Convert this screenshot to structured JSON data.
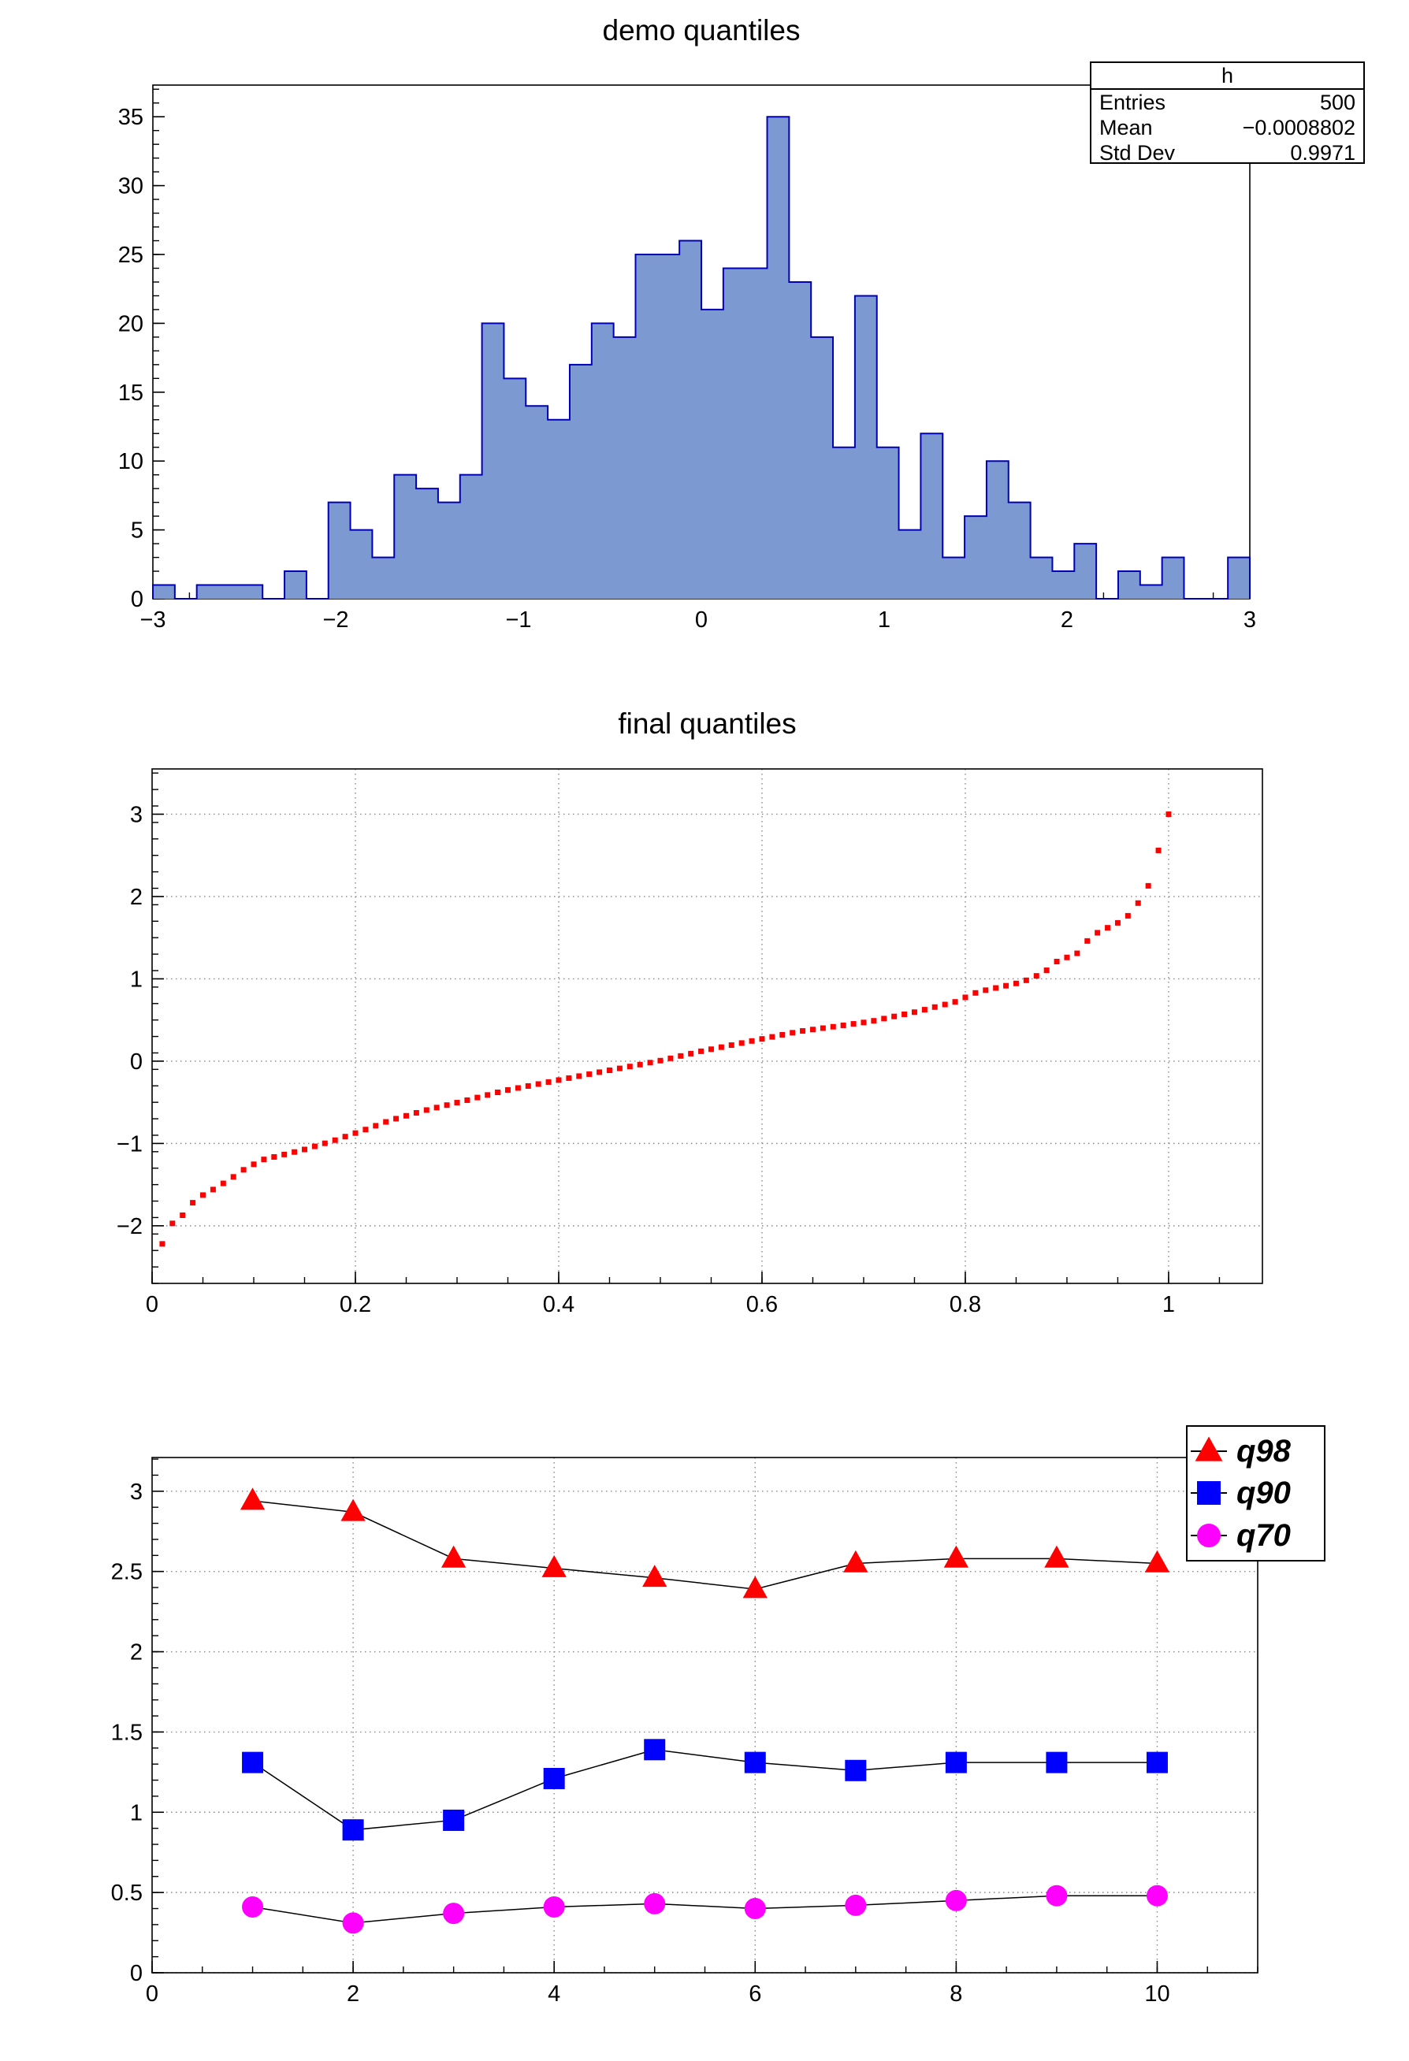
{
  "canvas": {
    "background": "#ffffff"
  },
  "colors": {
    "hist_fill": "#7d99d1",
    "hist_line": "#0000b4",
    "scatter_marker": "#ff0000",
    "q98": "#ff0000",
    "q90": "#0000ff",
    "q70": "#ff00ff",
    "grid": "#888888",
    "axis": "#000000"
  },
  "chart_data": [
    {
      "type": "bar",
      "title": "demo quantiles",
      "xlabel": "",
      "ylabel": "",
      "xlim": [
        -3,
        3
      ],
      "ylim": [
        0,
        37.3
      ],
      "grid": false,
      "bin_start": -3,
      "bin_width": 0.12,
      "bins": 50,
      "values": [
        1,
        0,
        1,
        1,
        1,
        0,
        2,
        0,
        7,
        5,
        3,
        9,
        8,
        7,
        9,
        20,
        16,
        14,
        13,
        17,
        20,
        19,
        25,
        25,
        26,
        21,
        24,
        24,
        35,
        23,
        19,
        11,
        22,
        11,
        5,
        12,
        3,
        6,
        10,
        7,
        3,
        2,
        4,
        0,
        2,
        1,
        3,
        0,
        0,
        3
      ],
      "xtick_values": [
        -3,
        -2,
        -1,
        0,
        1,
        2,
        3
      ],
      "xtick_labels": [
        "−3",
        "−2",
        "−1",
        "0",
        "1",
        "2",
        "3"
      ],
      "ytick_values": [
        0,
        5,
        10,
        15,
        20,
        25,
        30,
        35
      ],
      "ytick_labels": [
        "0",
        "5",
        "10",
        "15",
        "20",
        "25",
        "30",
        "35"
      ],
      "x_minor_step": 0.2,
      "y_minor_step": 1,
      "fill": "#7d99d1",
      "line": "#0000b4",
      "stats": {
        "title": "h",
        "rows": [
          {
            "label": "Entries",
            "value": "500"
          },
          {
            "label": "Mean",
            "value": "−0.0008802"
          },
          {
            "label": "Std Dev",
            "value": "0.9971"
          }
        ]
      }
    },
    {
      "type": "scatter",
      "title": "final quantiles",
      "xlabel": "",
      "ylabel": "",
      "xlim": [
        0,
        1.0923
      ],
      "ylim": [
        -2.7,
        3.55
      ],
      "grid": true,
      "marker": "square",
      "marker_size": 7,
      "color": "#ff0000",
      "xtick_values": [
        0,
        0.2,
        0.4,
        0.6,
        0.8,
        1
      ],
      "xtick_labels": [
        "0",
        "0.2",
        "0.4",
        "0.6",
        "0.8",
        "1"
      ],
      "ytick_values": [
        -2,
        -1,
        0,
        1,
        2,
        3
      ],
      "ytick_labels": [
        "−2",
        "−1",
        "0",
        "1",
        "2",
        "3"
      ],
      "x_minor_step": 0.05,
      "y_minor_step": 0.2,
      "x": [
        0.01,
        0.02,
        0.03,
        0.04,
        0.05,
        0.06,
        0.07,
        0.08,
        0.09,
        0.1,
        0.11,
        0.12,
        0.13,
        0.14,
        0.15,
        0.16,
        0.17,
        0.18,
        0.19,
        0.2,
        0.21,
        0.22,
        0.23,
        0.24,
        0.25,
        0.26,
        0.27,
        0.28,
        0.29,
        0.3,
        0.31,
        0.32,
        0.33,
        0.34,
        0.35,
        0.36,
        0.37,
        0.38,
        0.39,
        0.4,
        0.41,
        0.42,
        0.43,
        0.44,
        0.45,
        0.46,
        0.47,
        0.48,
        0.49,
        0.5,
        0.51,
        0.52,
        0.53,
        0.54,
        0.55,
        0.56,
        0.57,
        0.58,
        0.59,
        0.6,
        0.61,
        0.62,
        0.63,
        0.64,
        0.65,
        0.66,
        0.67,
        0.68,
        0.69,
        0.7,
        0.71,
        0.72,
        0.73,
        0.74,
        0.75,
        0.76,
        0.77,
        0.78,
        0.79,
        0.8,
        0.81,
        0.82,
        0.83,
        0.84,
        0.85,
        0.86,
        0.87,
        0.88,
        0.89,
        0.9,
        0.91,
        0.92,
        0.93,
        0.94,
        0.95,
        0.96,
        0.97,
        0.98,
        0.99,
        1.0
      ],
      "y": [
        -2.22,
        -1.971,
        -1.872,
        -1.72,
        -1.627,
        -1.56,
        -1.485,
        -1.406,
        -1.32,
        -1.253,
        -1.194,
        -1.164,
        -1.134,
        -1.104,
        -1.073,
        -1.035,
        -0.998,
        -0.96,
        -0.917,
        -0.874,
        -0.831,
        -0.785,
        -0.738,
        -0.699,
        -0.664,
        -0.628,
        -0.594,
        -0.564,
        -0.534,
        -0.504,
        -0.474,
        -0.442,
        -0.411,
        -0.379,
        -0.35,
        -0.326,
        -0.302,
        -0.278,
        -0.254,
        -0.23,
        -0.206,
        -0.182,
        -0.158,
        -0.134,
        -0.111,
        -0.088,
        -0.065,
        -0.042,
        -0.018,
        0.006,
        0.034,
        0.063,
        0.091,
        0.12,
        0.145,
        0.17,
        0.195,
        0.22,
        0.245,
        0.27,
        0.295,
        0.32,
        0.345,
        0.367,
        0.384,
        0.401,
        0.418,
        0.435,
        0.453,
        0.47,
        0.49,
        0.517,
        0.543,
        0.569,
        0.595,
        0.625,
        0.657,
        0.688,
        0.72,
        0.775,
        0.829,
        0.862,
        0.889,
        0.916,
        0.944,
        0.982,
        1.036,
        1.104,
        1.21,
        1.26,
        1.31,
        1.46,
        1.56,
        1.62,
        1.68,
        1.766,
        1.92,
        2.13,
        2.56,
        3.0
      ]
    },
    {
      "type": "line",
      "title": "",
      "xlabel": "",
      "ylabel": "",
      "xlim": [
        0,
        11.0
      ],
      "ylim": [
        0,
        3.21
      ],
      "grid": true,
      "legend_position": "top-right",
      "x": [
        1,
        2,
        3,
        4,
        5,
        6,
        7,
        8,
        9,
        10
      ],
      "series": [
        {
          "name": "q98",
          "color": "#ff0000",
          "marker": "triangle",
          "values": [
            2.94,
            2.87,
            2.58,
            2.52,
            2.46,
            2.39,
            2.55,
            2.58,
            2.58,
            2.55
          ]
        },
        {
          "name": "q90",
          "color": "#0000ff",
          "marker": "square",
          "values": [
            1.31,
            0.89,
            0.95,
            1.21,
            1.39,
            1.31,
            1.26,
            1.31,
            1.31,
            1.31
          ]
        },
        {
          "name": "q70",
          "color": "#ff00ff",
          "marker": "circle",
          "values": [
            0.41,
            0.31,
            0.37,
            0.41,
            0.43,
            0.4,
            0.42,
            0.45,
            0.48,
            0.48
          ]
        }
      ],
      "xtick_values": [
        0,
        2,
        4,
        6,
        8,
        10
      ],
      "xtick_labels": [
        "0",
        "2",
        "4",
        "6",
        "8",
        "10"
      ],
      "ytick_values": [
        0,
        0.5,
        1,
        1.5,
        2,
        2.5,
        3
      ],
      "ytick_labels": [
        "0",
        "0.5",
        "1",
        "1.5",
        "2",
        "2.5",
        "3"
      ],
      "x_minor_step": 0.5,
      "y_minor_step": 0.1
    }
  ]
}
